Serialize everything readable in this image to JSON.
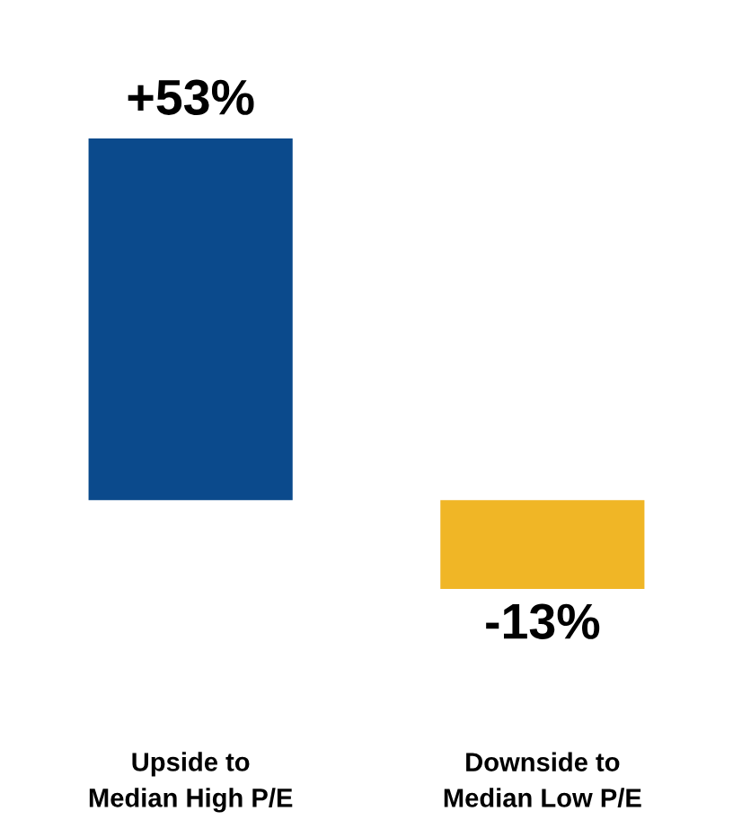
{
  "chart_data": {
    "type": "bar",
    "categories": [
      "Upside to\nMedian High P/E",
      "Downside to\nMedian Low P/E"
    ],
    "values": [
      53,
      -13
    ],
    "colors": [
      "#0b4a8c",
      "#f0b626"
    ],
    "value_labels": [
      "+53%",
      "-13%"
    ]
  }
}
